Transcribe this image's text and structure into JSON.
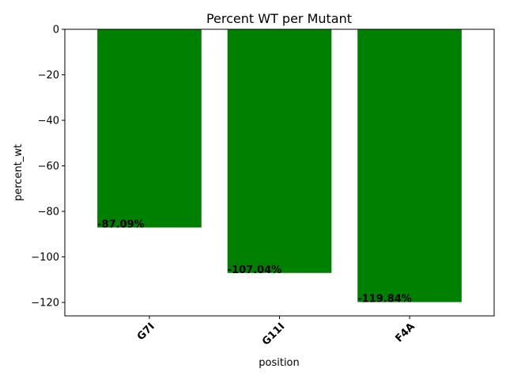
{
  "chart_data": {
    "type": "bar",
    "title": "Percent WT per Mutant",
    "xlabel": "position",
    "ylabel": "percent_wt",
    "categories": [
      "G7I",
      "G11I",
      "F4A"
    ],
    "values": [
      -87.09,
      -107.04,
      -119.84
    ],
    "value_labels": [
      "-87.09%",
      "-107.04%",
      "-119.84%"
    ],
    "ylim": [
      -125.9,
      0
    ],
    "yticks": [
      0,
      -20,
      -40,
      -60,
      -80,
      -100,
      -120
    ],
    "ytick_labels": [
      "0",
      "−20",
      "−40",
      "−60",
      "−80",
      "−100",
      "−120"
    ],
    "bar_color": "#008000",
    "grid": false,
    "legend": "none"
  }
}
